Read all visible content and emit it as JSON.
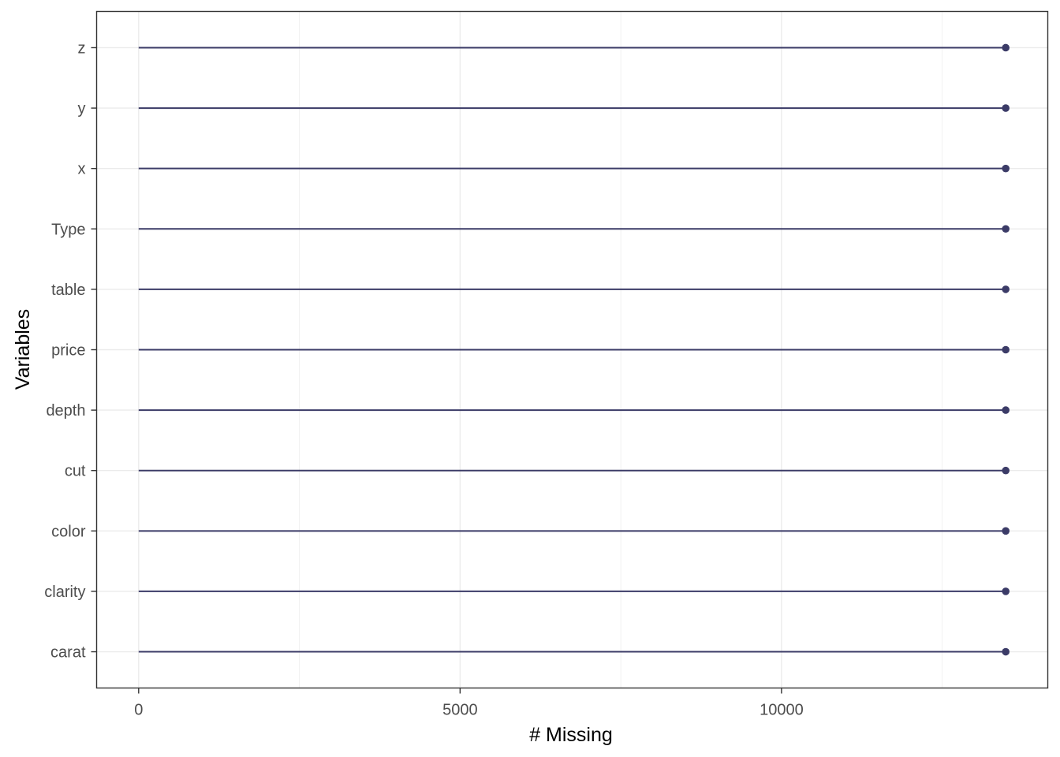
{
  "chart_data": {
    "type": "lollipop",
    "xlabel": "# Missing",
    "ylabel": "Variables",
    "xlim": [
      -654,
      14142
    ],
    "x_ticks": [
      0,
      5000,
      10000
    ],
    "x_minor_ticks": [
      2500,
      7500,
      12500
    ],
    "grid": true,
    "categories": [
      "carat",
      "clarity",
      "color",
      "cut",
      "depth",
      "price",
      "table",
      "Type",
      "x",
      "y",
      "z"
    ],
    "values": [
      13488,
      13488,
      13488,
      13488,
      13488,
      13488,
      13488,
      13488,
      13488,
      13488,
      13488
    ],
    "colors": {
      "series": "#3b3b67",
      "grid": "#ebebeb",
      "panel_border": "#333333",
      "tick_text": "#4d4d4d"
    }
  }
}
